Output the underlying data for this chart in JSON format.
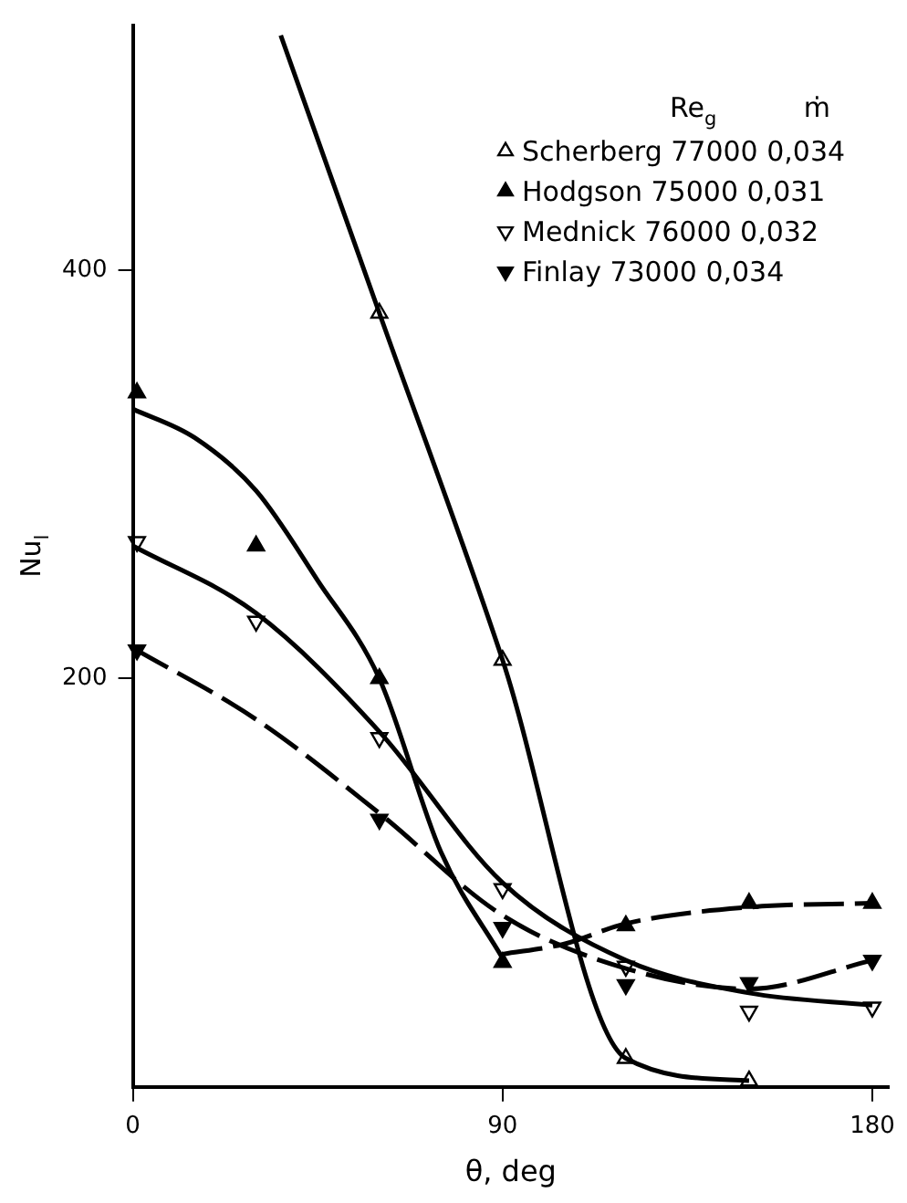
{
  "chart_data": {
    "type": "scatter",
    "xlabel": "θ, deg",
    "ylabel": "Nu$_{l}$",
    "legend_title": "Re$_{g}$          ṁ",
    "legend": "top right",
    "grid": false,
    "xlim": [
      0,
      184
    ],
    "xticks": [
      0,
      90,
      180
    ],
    "ylim": [
      0,
      520
    ],
    "yticks": [
      200,
      400
    ],
    "series": [
      {
        "name": "Scherberg 77000 0,034",
        "type": "scatter",
        "marker": "triangle-open",
        "color": "#000000",
        "x": [
          60,
          90,
          120,
          150
        ],
        "values": [
          379,
          209,
          14,
          3
        ]
      },
      {
        "name": "Hodgson 75000 0,031",
        "type": "scatter",
        "marker": "triangle",
        "color": "#000000",
        "x": [
          1,
          30,
          60,
          90,
          120,
          150,
          180
        ],
        "values": [
          340,
          265,
          200,
          61,
          79,
          90,
          90
        ]
      },
      {
        "name": "Mednick 76000 0,032",
        "type": "scatter",
        "marker": "triangle-down-open",
        "color": "#000000",
        "x": [
          1,
          30,
          60,
          90,
          120,
          150,
          180
        ],
        "values": [
          267,
          228,
          171,
          97,
          59,
          37,
          39
        ]
      },
      {
        "name": "Finlay 73000 0,034",
        "type": "scatter",
        "marker": "triangle-down",
        "color": "#000000",
        "x": [
          1,
          60,
          90,
          120,
          150,
          180
        ],
        "values": [
          214,
          131,
          78,
          50,
          51,
          62
        ]
      },
      {
        "type": "line",
        "marker": "none",
        "line_style": "solid",
        "color": "#000000",
        "x": [
          36,
          60,
          90,
          120,
          150
        ],
        "values": [
          515,
          379,
          209,
          14,
          3
        ]
      },
      {
        "type": "line",
        "marker": "none",
        "line_style": "solid",
        "color": "#000000",
        "x": [
          0,
          15,
          30,
          45,
          60,
          75,
          90
        ],
        "values": [
          332,
          318,
          292,
          248,
          200,
          115,
          63
        ]
      },
      {
        "type": "line",
        "marker": "none",
        "line_style": "dashed",
        "color": "#000000",
        "x": [
          90,
          105,
          120,
          150,
          180
        ],
        "values": [
          65,
          70,
          80,
          88,
          90
        ]
      },
      {
        "type": "line",
        "marker": "none",
        "line_style": "solid",
        "color": "#000000",
        "x": [
          0,
          30,
          60,
          90,
          120,
          150,
          180
        ],
        "values": [
          265,
          232,
          174,
          100,
          62,
          46,
          40
        ]
      },
      {
        "type": "line",
        "marker": "none",
        "line_style": "dashed",
        "color": "#000000",
        "x": [
          0,
          30,
          60,
          90,
          120,
          150,
          180
        ],
        "values": [
          215,
          180,
          134,
          84,
          58,
          48,
          62
        ]
      }
    ]
  }
}
